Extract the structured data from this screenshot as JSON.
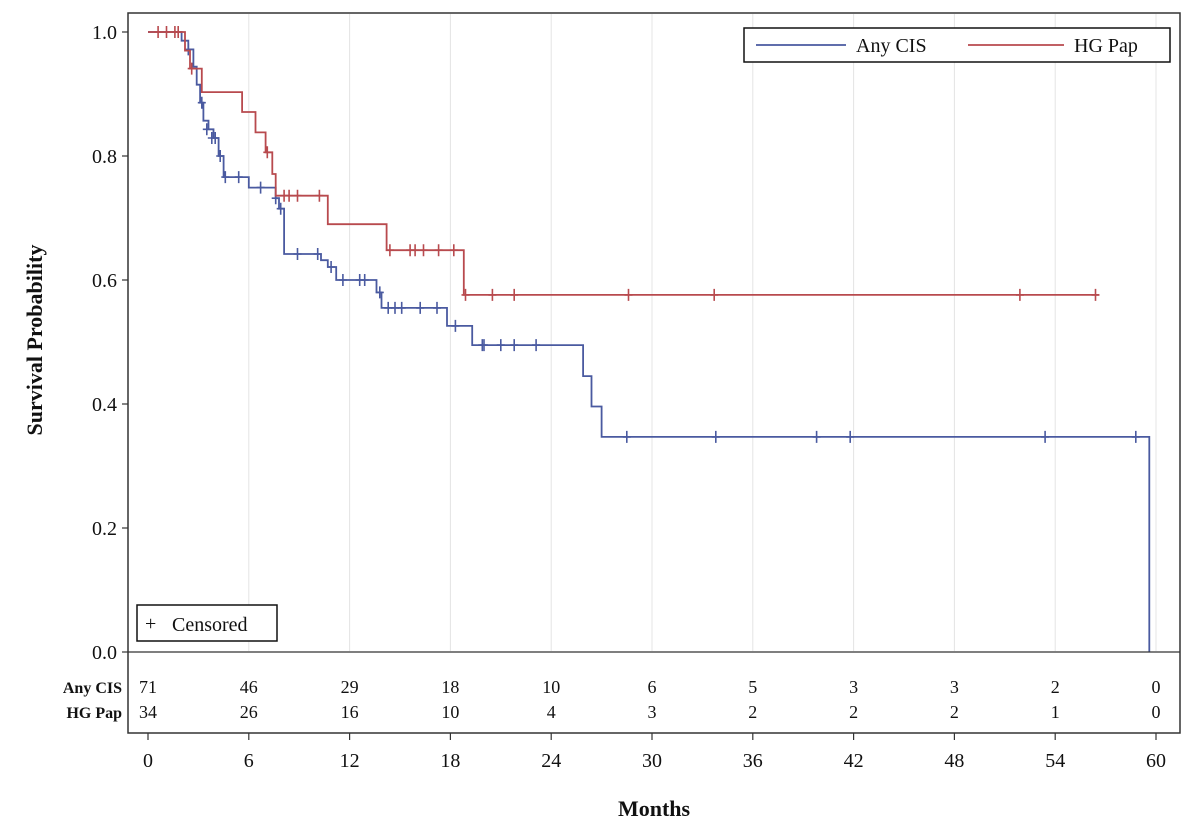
{
  "chart_data": {
    "type": "line",
    "subtype": "kaplan-meier",
    "xlabel": "Months",
    "ylabel": "Survival Probability",
    "xlim": [
      0,
      60
    ],
    "ylim": [
      0,
      1
    ],
    "x_ticks": [
      0,
      6,
      12,
      18,
      24,
      30,
      36,
      42,
      48,
      54,
      60
    ],
    "x_tick_labels": [
      "0",
      "6",
      "12",
      "18",
      "24",
      "30",
      "36",
      "42",
      "48",
      "54",
      "60"
    ],
    "y_ticks": [
      0,
      0.2,
      0.4,
      0.6,
      0.8,
      1.0
    ],
    "y_tick_labels": [
      "0.0",
      "0.2",
      "0.4",
      "0.6",
      "0.8",
      "1.0"
    ],
    "grid": "vertical",
    "legend_position": "top-right",
    "censored_legend_label": "Censored",
    "censored_marker": "+",
    "series": [
      {
        "name": "Any CIS",
        "color": "#4a5aa0",
        "steps": [
          [
            0,
            1.0
          ],
          [
            2.0,
            0.986
          ],
          [
            2.4,
            0.972
          ],
          [
            2.7,
            0.944
          ],
          [
            2.9,
            0.915
          ],
          [
            3.1,
            0.886
          ],
          [
            3.3,
            0.857
          ],
          [
            3.6,
            0.843
          ],
          [
            3.9,
            0.829
          ],
          [
            4.2,
            0.8
          ],
          [
            4.5,
            0.766
          ],
          [
            6.0,
            0.749
          ],
          [
            7.6,
            0.732
          ],
          [
            7.8,
            0.715
          ],
          [
            8.1,
            0.642
          ],
          [
            10.3,
            0.632
          ],
          [
            10.7,
            0.621
          ],
          [
            11.2,
            0.6
          ],
          [
            13.6,
            0.58
          ],
          [
            13.9,
            0.555
          ],
          [
            17.8,
            0.526
          ],
          [
            19.3,
            0.495
          ],
          [
            25.9,
            0.445
          ],
          [
            26.4,
            0.396
          ],
          [
            27.0,
            0.347
          ],
          [
            59.6,
            0.0
          ]
        ],
        "end_x": 59.6,
        "censored": [
          [
            2.4,
            0.972
          ],
          [
            3.2,
            0.886
          ],
          [
            3.5,
            0.843
          ],
          [
            3.8,
            0.829
          ],
          [
            4.0,
            0.829
          ],
          [
            4.3,
            0.8
          ],
          [
            4.6,
            0.766
          ],
          [
            5.4,
            0.766
          ],
          [
            6.7,
            0.749
          ],
          [
            7.6,
            0.732
          ],
          [
            7.9,
            0.715
          ],
          [
            8.9,
            0.642
          ],
          [
            10.1,
            0.642
          ],
          [
            10.9,
            0.621
          ],
          [
            11.6,
            0.6
          ],
          [
            12.6,
            0.6
          ],
          [
            12.9,
            0.6
          ],
          [
            13.8,
            0.58
          ],
          [
            14.3,
            0.555
          ],
          [
            14.7,
            0.555
          ],
          [
            15.1,
            0.555
          ],
          [
            16.2,
            0.555
          ],
          [
            17.2,
            0.555
          ],
          [
            18.3,
            0.526
          ],
          [
            19.9,
            0.495
          ],
          [
            20.0,
            0.495
          ],
          [
            21.0,
            0.495
          ],
          [
            21.8,
            0.495
          ],
          [
            23.1,
            0.495
          ],
          [
            28.5,
            0.347
          ],
          [
            33.8,
            0.347
          ],
          [
            39.8,
            0.347
          ],
          [
            41.8,
            0.347
          ],
          [
            53.4,
            0.347
          ],
          [
            58.8,
            0.347
          ]
        ]
      },
      {
        "name": "HG Pap",
        "color": "#b84a4e",
        "steps": [
          [
            0,
            1.0
          ],
          [
            2.2,
            0.97
          ],
          [
            2.5,
            0.941
          ],
          [
            3.2,
            0.903
          ],
          [
            5.6,
            0.871
          ],
          [
            6.4,
            0.838
          ],
          [
            7.0,
            0.806
          ],
          [
            7.4,
            0.771
          ],
          [
            7.6,
            0.736
          ],
          [
            10.7,
            0.69
          ],
          [
            14.2,
            0.648
          ],
          [
            18.8,
            0.576
          ]
        ],
        "end_x": 56.6,
        "censored": [
          [
            0.6,
            1.0
          ],
          [
            1.1,
            1.0
          ],
          [
            1.6,
            1.0
          ],
          [
            1.8,
            1.0
          ],
          [
            2.6,
            0.941
          ],
          [
            7.1,
            0.806
          ],
          [
            8.1,
            0.736
          ],
          [
            8.4,
            0.736
          ],
          [
            8.9,
            0.736
          ],
          [
            10.2,
            0.736
          ],
          [
            14.4,
            0.648
          ],
          [
            15.6,
            0.648
          ],
          [
            15.9,
            0.648
          ],
          [
            16.4,
            0.648
          ],
          [
            17.3,
            0.648
          ],
          [
            18.2,
            0.648
          ],
          [
            18.9,
            0.576
          ],
          [
            20.5,
            0.576
          ],
          [
            21.8,
            0.576
          ],
          [
            28.6,
            0.576
          ],
          [
            33.7,
            0.576
          ],
          [
            51.9,
            0.576
          ],
          [
            56.4,
            0.576
          ]
        ]
      }
    ],
    "risk_table": {
      "rows": [
        {
          "label": "Any CIS",
          "values": [
            "71",
            "46",
            "29",
            "18",
            "10",
            "6",
            "5",
            "3",
            "3",
            "2",
            "0"
          ]
        },
        {
          "label": "HG Pap",
          "values": [
            "34",
            "26",
            "16",
            "10",
            "4",
            "3",
            "2",
            "2",
            "2",
            "1",
            "0"
          ]
        }
      ]
    }
  }
}
